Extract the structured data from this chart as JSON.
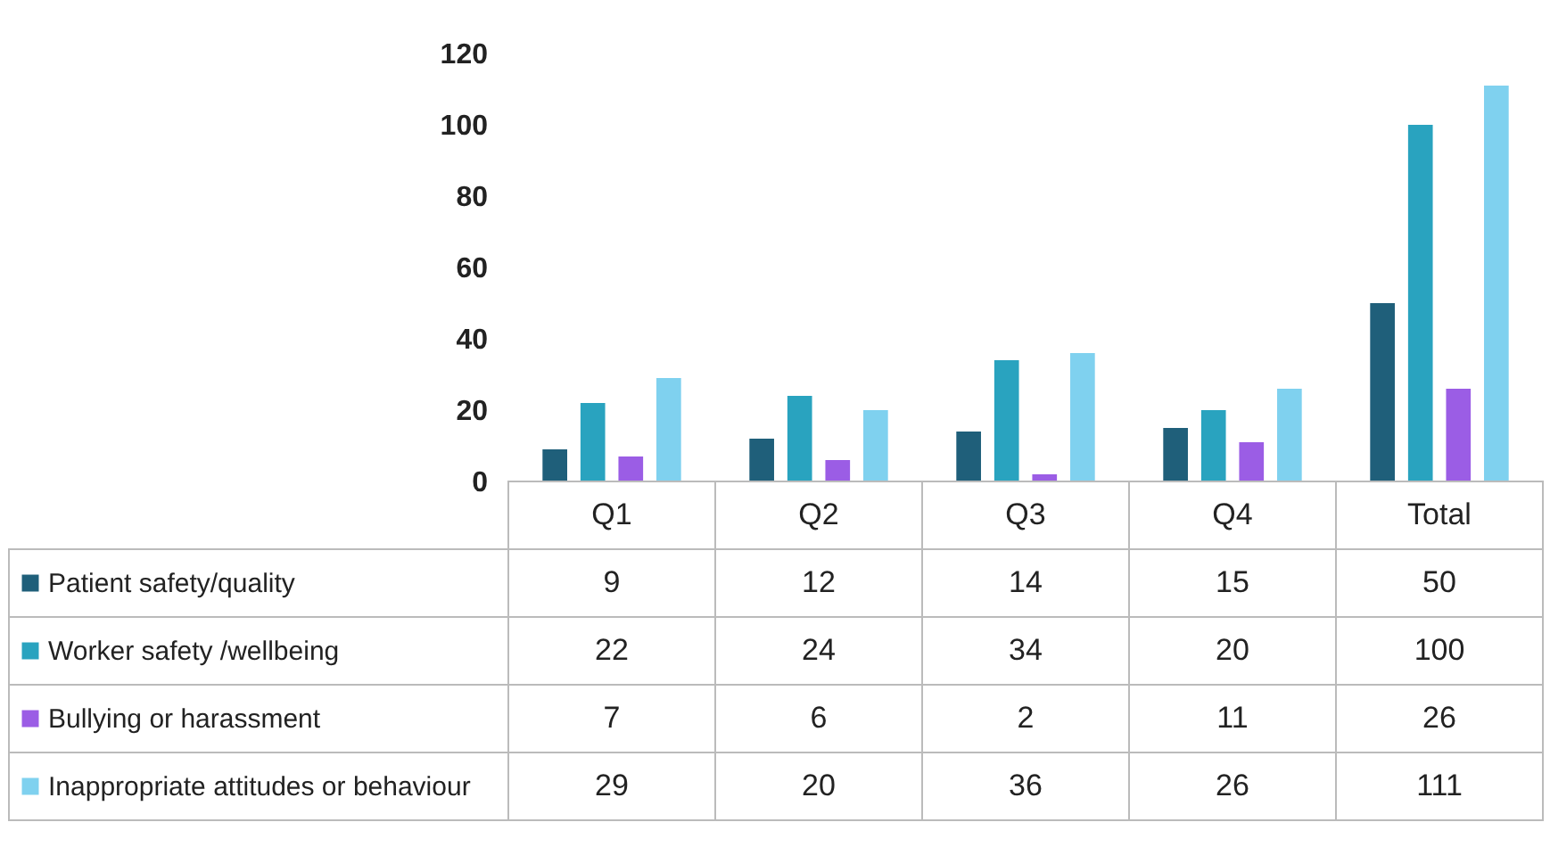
{
  "chart_data": {
    "type": "bar",
    "categories": [
      "Q1",
      "Q2",
      "Q3",
      "Q4",
      "Total"
    ],
    "series": [
      {
        "name": "Patient safety/quality",
        "color": "#1f5f7a",
        "values": [
          9,
          12,
          14,
          15,
          50
        ]
      },
      {
        "name": "Worker safety /wellbeing",
        "color": "#29a3bf",
        "values": [
          22,
          24,
          34,
          20,
          100
        ]
      },
      {
        "name": "Bullying or harassment",
        "color": "#9b5de5",
        "values": [
          7,
          6,
          2,
          11,
          26
        ]
      },
      {
        "name": "Inappropriate attitudes or behaviour",
        "color": "#7fd1ef",
        "values": [
          29,
          20,
          36,
          26,
          111
        ]
      }
    ],
    "ylim": [
      0,
      120
    ],
    "yticks": [
      0,
      20,
      40,
      60,
      80,
      100,
      120
    ],
    "data_labels": true,
    "legend": "bottom left",
    "grid": false
  }
}
